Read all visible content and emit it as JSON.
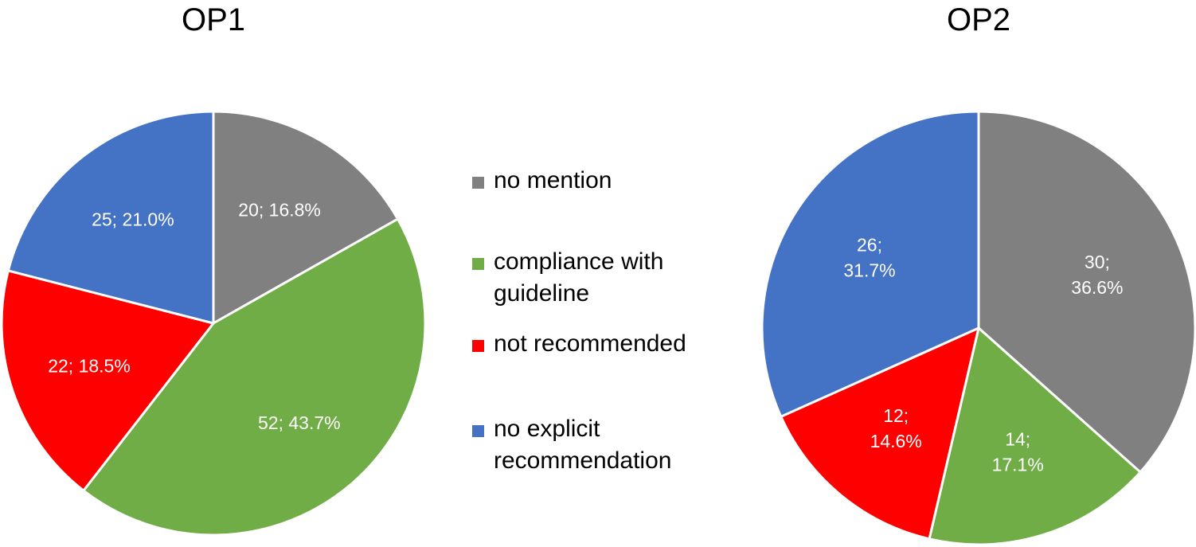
{
  "chart_data": [
    {
      "type": "pie",
      "title": "OP1",
      "slices": [
        {
          "category": "no mention",
          "value": 20,
          "percent": 16.8,
          "label": "20; 16.8%",
          "label_lines": [
            "20; 16.8%"
          ]
        },
        {
          "category": "compliance with guideline",
          "value": 52,
          "percent": 43.7,
          "label": "52; 43.7%",
          "label_lines": [
            "52; 43.7%"
          ]
        },
        {
          "category": "not recommended",
          "value": 22,
          "percent": 18.5,
          "label": "22; 18.5%",
          "label_lines": [
            "22; 18.5%"
          ]
        },
        {
          "category": "no explicit recommendation",
          "value": 25,
          "percent": 21.0,
          "label": "25; 21.0%",
          "label_lines": [
            "25; 21.0%"
          ]
        }
      ]
    },
    {
      "type": "pie",
      "title": "OP2",
      "slices": [
        {
          "category": "no mention",
          "value": 30,
          "percent": 36.6,
          "label": "30; 36.6%",
          "label_lines": [
            "30;",
            "36.6%"
          ]
        },
        {
          "category": "compliance with guideline",
          "value": 14,
          "percent": 17.1,
          "label": "14; 17.1%",
          "label_lines": [
            "14;",
            "17.1%"
          ]
        },
        {
          "category": "not recommended",
          "value": 12,
          "percent": 14.6,
          "label": "12; 14.6%",
          "label_lines": [
            "12;",
            "14.6%"
          ]
        },
        {
          "category": "no explicit recommendation",
          "value": 26,
          "percent": 31.7,
          "label": "26; 31.7%",
          "label_lines": [
            "26;",
            "31.7%"
          ]
        }
      ]
    }
  ],
  "legend": {
    "placement": "center",
    "items": [
      {
        "name": "no mention",
        "lines": [
          "no mention"
        ],
        "color": "#808080"
      },
      {
        "name": "compliance with guideline",
        "lines": [
          "compliance with",
          "guideline"
        ],
        "color": "#70AD47"
      },
      {
        "name": "not recommended",
        "lines": [
          "not recommended"
        ],
        "color": "#FF0000"
      },
      {
        "name": "no explicit recommendation",
        "lines": [
          "no explicit",
          "recommendation"
        ],
        "color": "#4472C4"
      }
    ]
  }
}
